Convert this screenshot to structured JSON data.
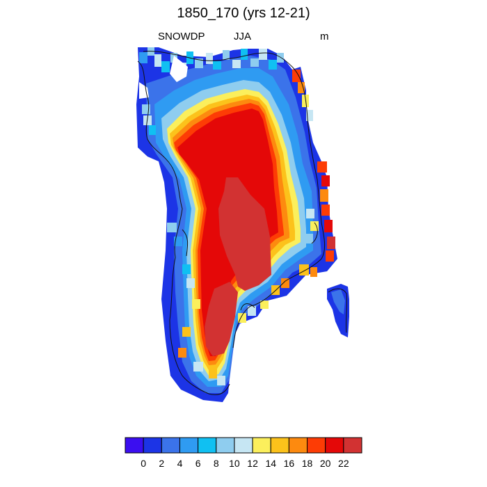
{
  "title": "1850_170 (yrs 12-21)",
  "subtitle": {
    "left": "SNOWDP",
    "center": "JJA",
    "right": "m"
  },
  "colorbar": {
    "colors": [
      "#3b0ef0",
      "#1c34e6",
      "#3b73ea",
      "#2f9bf2",
      "#10c0f2",
      "#8fcdef",
      "#c6e6f3",
      "#fbef5c",
      "#fcc21b",
      "#fd8a0f",
      "#fd3c05",
      "#e40808",
      "#d23232"
    ],
    "tick_labels": [
      "0",
      "2",
      "4",
      "6",
      "8",
      "10",
      "12",
      "14",
      "16",
      "18",
      "20",
      "22"
    ]
  },
  "map": {
    "region": "Greenland",
    "palette": {
      "deep_blue": "#1c34e6",
      "mid_blue": "#3b73ea",
      "sky_blue": "#2f9bf2",
      "cyan": "#10c0f2",
      "pale_blue": "#8fcdef",
      "ice_blue": "#c6e6f3",
      "yellow": "#fbef5c",
      "gold": "#fcc21b",
      "orange": "#fd8a0f",
      "red_orange": "#fd3c05",
      "red": "#e40808",
      "crimson": "#d23232"
    }
  }
}
